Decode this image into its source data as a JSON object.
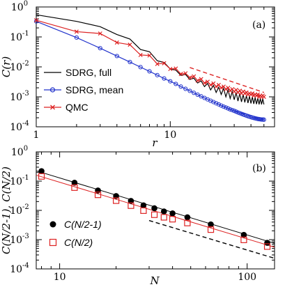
{
  "chart_data": [
    {
      "type": "line",
      "panel_label": "(a)",
      "xlabel": "r",
      "ylabel": "C(r)",
      "xscale": "log",
      "yscale": "log",
      "xlim": [
        1,
        60
      ],
      "ylim": [
        0.0001,
        1
      ],
      "x_ticks": [
        {
          "value": 1,
          "label": "1"
        },
        {
          "value": 10,
          "label": "10"
        }
      ],
      "y_ticks": [
        {
          "value": 0.0001,
          "base": "10",
          "exp": "-4"
        },
        {
          "value": 0.001,
          "base": "10",
          "exp": "-3"
        },
        {
          "value": 0.01,
          "base": "10",
          "exp": "-2"
        },
        {
          "value": 0.1,
          "base": "10",
          "exp": "-1"
        },
        {
          "value": 1,
          "base": "10",
          "exp": "0"
        }
      ],
      "legend_position": "bottom-left",
      "series": [
        {
          "name": "SDRG, full",
          "color": "#000000",
          "marker": "none",
          "x": [
            1,
            2,
            3,
            4,
            5,
            6,
            7,
            8,
            9,
            10,
            11,
            12,
            13,
            14,
            15,
            16,
            17,
            18,
            19,
            20,
            21,
            22,
            23,
            24,
            25,
            26,
            27,
            28,
            29,
            30,
            31,
            32,
            33,
            34,
            35,
            36,
            37,
            38,
            39,
            40,
            41,
            42,
            43,
            44,
            45,
            46,
            47,
            48,
            49,
            50
          ],
          "y": [
            0.55,
            0.33,
            0.22,
            0.12,
            0.085,
            0.038,
            0.032,
            0.016,
            0.014,
            0.0085,
            0.0078,
            0.0052,
            0.0056,
            0.0038,
            0.0042,
            0.0029,
            0.0034,
            0.0022,
            0.0028,
            0.0017,
            0.0024,
            0.0014,
            0.0021,
            0.0012,
            0.0019,
            0.001,
            0.0017,
            0.00088,
            0.0015,
            0.0008,
            0.0014,
            0.00072,
            0.0013,
            0.00068,
            0.0012,
            0.00065,
            0.0011,
            0.00062,
            0.00105,
            0.0006,
            0.001,
            0.00058,
            0.00095,
            0.00057,
            0.0009,
            0.00056,
            0.00088,
            0.00056,
            0.00086,
            0.00056
          ]
        },
        {
          "name": "SDRG, mean",
          "color": "#2233cc",
          "marker": "circle",
          "x": [
            1,
            2,
            3,
            4,
            5,
            6,
            7,
            8,
            9,
            10,
            11,
            12,
            13,
            14,
            15,
            16,
            17,
            18,
            19,
            20,
            21,
            22,
            23,
            24,
            25,
            26,
            27,
            28,
            29,
            30,
            31,
            32,
            33,
            34,
            35,
            36,
            37,
            38,
            39,
            40,
            41,
            42,
            43,
            44,
            45,
            46,
            47,
            48,
            49,
            50
          ],
          "y": [
            0.33,
            0.095,
            0.042,
            0.023,
            0.0145,
            0.0098,
            0.0071,
            0.0053,
            0.0041,
            0.0033,
            0.0027,
            0.0022,
            0.00185,
            0.00158,
            0.00136,
            0.00118,
            0.00104,
            0.00092,
            0.00082,
            0.00074,
            0.00067,
            0.00061,
            0.00056,
            0.00051,
            0.00047,
            0.00044,
            0.00041,
            0.00038,
            0.00036,
            0.00034,
            0.00032,
            0.0003,
            0.000285,
            0.00027,
            0.000258,
            0.000246,
            0.000236,
            0.000226,
            0.000218,
            0.00021,
            0.000203,
            0.000197,
            0.000192,
            0.000187,
            0.000183,
            0.00018,
            0.000177,
            0.000175,
            0.000174,
            0.000173
          ]
        },
        {
          "name": "QMC",
          "color": "#dd2222",
          "marker": "x",
          "x": [
            1,
            2,
            3,
            4,
            5,
            6,
            7,
            8,
            9,
            10,
            11,
            12,
            13,
            14,
            15,
            16,
            17,
            18,
            19,
            20,
            21,
            22,
            23,
            24,
            25,
            26,
            27,
            28,
            29,
            30,
            31,
            32,
            33,
            34,
            35,
            36,
            37,
            38,
            39,
            40,
            41,
            42,
            43,
            44,
            45,
            46,
            47,
            48,
            49,
            50
          ],
          "y": [
            0.36,
            0.15,
            0.13,
            0.065,
            0.055,
            0.025,
            0.024,
            0.0125,
            0.0132,
            0.0085,
            0.0088,
            0.0058,
            0.0061,
            0.0044,
            0.0048,
            0.0035,
            0.0039,
            0.0029,
            0.0032,
            0.0025,
            0.0028,
            0.0022,
            0.0025,
            0.002,
            0.0022,
            0.0018,
            0.002,
            0.0016,
            0.0018,
            0.0015,
            0.0017,
            0.0014,
            0.0016,
            0.0013,
            0.0015,
            0.0013,
            0.0014,
            0.0012,
            0.0013,
            0.0012,
            0.0013,
            0.0011,
            0.0012,
            0.0011,
            0.0012,
            0.001,
            0.0011,
            0.001,
            0.0011,
            0.001
          ]
        }
      ],
      "reference_lines": [
        {
          "color": "#dd2222",
          "dash": true,
          "x": [
            14,
            50
          ],
          "y": [
            0.0095,
            0.0014
          ]
        },
        {
          "color": "#2233cc",
          "dash": true,
          "x": [
            30,
            50
          ],
          "y": [
            0.00034,
            0.000175
          ]
        }
      ]
    },
    {
      "type": "scatter",
      "panel_label": "(b)",
      "xlabel": "N",
      "ylabel": "C(N/2-1), C(N/2)",
      "xscale": "log",
      "yscale": "log",
      "xlim": [
        7.5,
        140
      ],
      "ylim": [
        0.0001,
        1
      ],
      "x_ticks": [
        {
          "value": 10,
          "label": "10"
        },
        {
          "value": 100,
          "label": "100"
        }
      ],
      "y_ticks": [
        {
          "value": 0.0001,
          "base": "10",
          "exp": "-4"
        },
        {
          "value": 0.001,
          "base": "10",
          "exp": "-3"
        },
        {
          "value": 0.01,
          "base": "10",
          "exp": "-2"
        },
        {
          "value": 0.1,
          "base": "10",
          "exp": "-1"
        },
        {
          "value": 1,
          "base": "10",
          "exp": "0"
        }
      ],
      "legend_position": "bottom-left",
      "series": [
        {
          "name": "C(N/2-1)",
          "color": "#000000",
          "marker": "filled-circle",
          "x": [
            8,
            12,
            16,
            20,
            24,
            28,
            32,
            36,
            40,
            48,
            64,
            96,
            128
          ],
          "y": [
            0.22,
            0.088,
            0.048,
            0.031,
            0.021,
            0.0148,
            0.0118,
            0.0092,
            0.0079,
            0.0058,
            0.0033,
            0.00145,
            0.00078
          ]
        },
        {
          "name": "C(N/2)",
          "color": "#dd2222",
          "marker": "open-square",
          "x": [
            8,
            12,
            16,
            20,
            24,
            28,
            32,
            36,
            40,
            48,
            64,
            96,
            128
          ],
          "y": [
            0.145,
            0.06,
            0.034,
            0.0215,
            0.0145,
            0.0098,
            0.0071,
            0.0058,
            0.005,
            0.0037,
            0.0022,
            0.00098,
            0.00058
          ]
        }
      ],
      "fit_lines": [
        {
          "color": "#000000",
          "x": [
            7.5,
            140
          ],
          "y": [
            0.225,
            0.00075
          ]
        },
        {
          "color": "#dd2222",
          "x": [
            7.5,
            140
          ],
          "y": [
            0.16,
            0.00055
          ]
        }
      ],
      "reference_lines": [
        {
          "color": "#000000",
          "dash": true,
          "x": [
            30,
            140
          ],
          "y": [
            0.0045,
            0.00023
          ]
        }
      ]
    }
  ]
}
